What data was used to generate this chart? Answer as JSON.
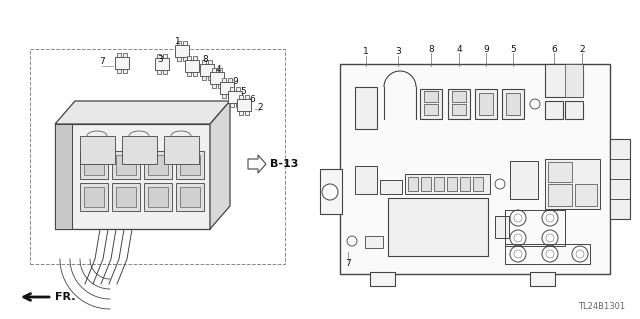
{
  "bg_color": "#ffffff",
  "title_code": "TL24B1301",
  "b13_label": "B-13",
  "fr_label": "FR.",
  "line_color": "#444444",
  "lw_main": 0.8,
  "lw_thin": 0.5,
  "lw_thick": 1.0
}
